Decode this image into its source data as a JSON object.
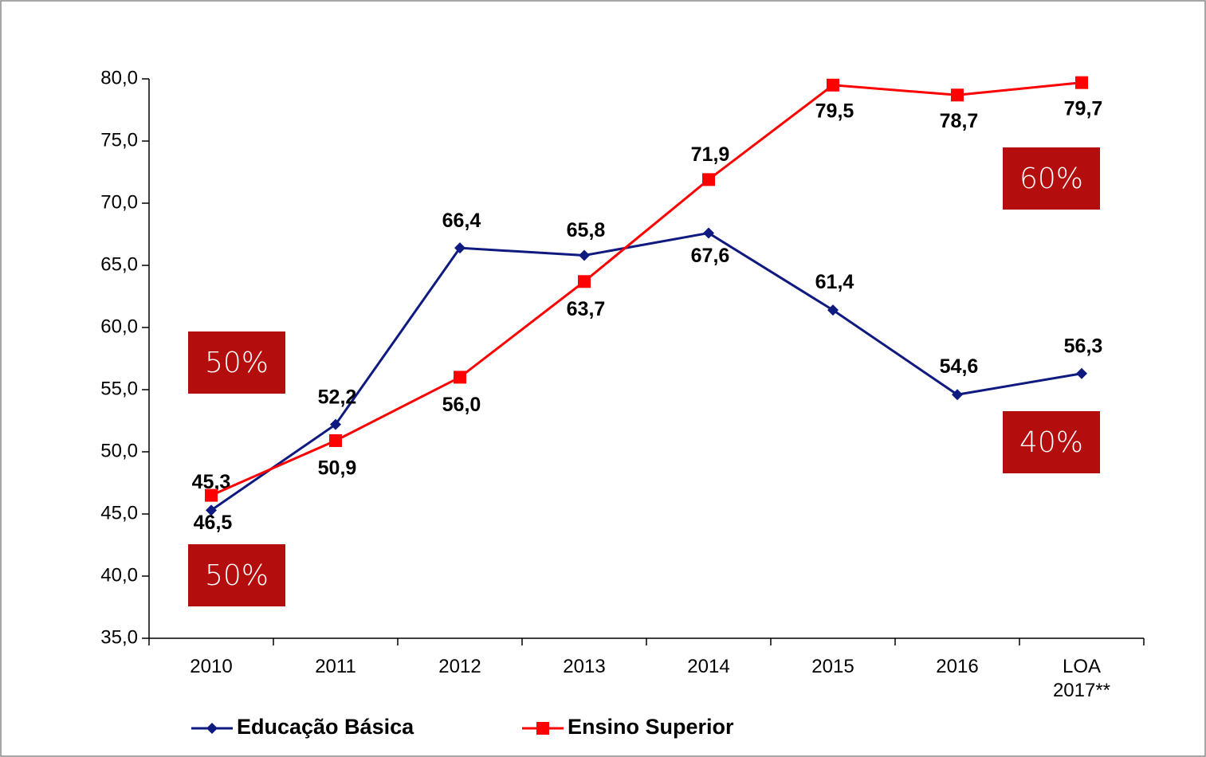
{
  "chart_data": {
    "type": "line",
    "categories": [
      "2010",
      "2011",
      "2012",
      "2013",
      "2014",
      "2015",
      "2016",
      "LOA 2017**"
    ],
    "series": [
      {
        "name": "Educação Básica",
        "color": "#0f1a80",
        "marker": "diamond",
        "values": [
          45.3,
          52.2,
          66.4,
          65.8,
          67.6,
          61.4,
          54.6,
          56.3
        ],
        "value_labels": [
          "45,3",
          "52,2",
          "66,4",
          "65,8",
          "67,6",
          "61,4",
          "54,6",
          "56,3"
        ]
      },
      {
        "name": "Ensino Superior",
        "color": "#ff0000",
        "marker": "square",
        "values": [
          46.5,
          50.9,
          56.0,
          63.7,
          71.9,
          79.5,
          78.7,
          79.7
        ],
        "value_labels": [
          "46,5",
          "50,9",
          "56,0",
          "63,7",
          "71,9",
          "79,5",
          "78,7",
          "79,7"
        ]
      }
    ],
    "ylim": [
      35,
      80
    ],
    "yticks": [
      {
        "value": 35,
        "label": "35,0"
      },
      {
        "value": 40,
        "label": "40,0"
      },
      {
        "value": 45,
        "label": "45,0"
      },
      {
        "value": 50,
        "label": "50,0"
      },
      {
        "value": 55,
        "label": "55,0"
      },
      {
        "value": 60,
        "label": "60,0"
      },
      {
        "value": 65,
        "label": "65,0"
      },
      {
        "value": 70,
        "label": "70,0"
      },
      {
        "value": 75,
        "label": "75,0"
      },
      {
        "value": 80,
        "label": "80,0"
      }
    ],
    "annotations": [
      "50%",
      "50%",
      "60%",
      "40%"
    ],
    "legend": "bottom"
  }
}
